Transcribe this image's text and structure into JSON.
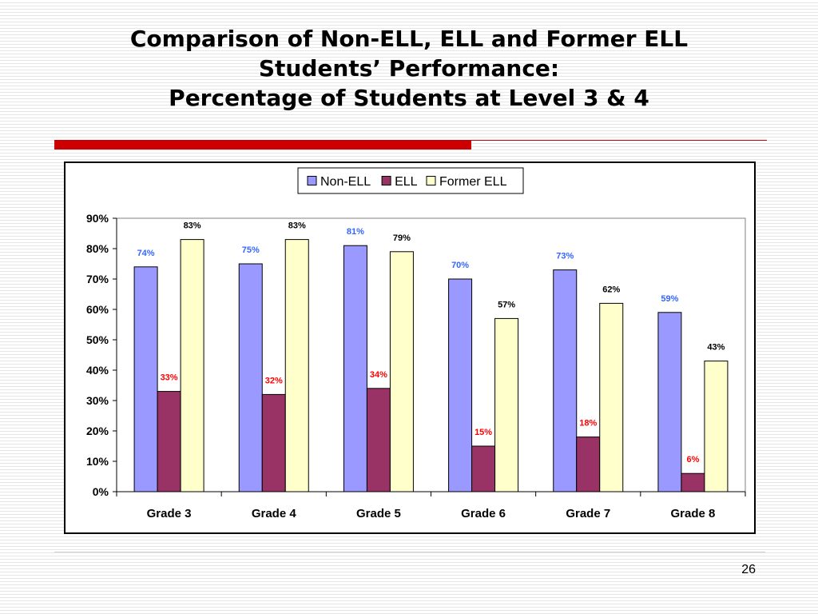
{
  "slide": {
    "title_lines": [
      "Comparison of Non-ELL, ELL and Former ELL",
      "Students’ Performance:",
      "Percentage of Students at Level 3 & 4"
    ],
    "page_number": "26"
  },
  "chart_data": {
    "type": "bar",
    "title": "",
    "xlabel": "",
    "ylabel": "",
    "categories": [
      "Grade 3",
      "Grade 4",
      "Grade 5",
      "Grade 6",
      "Grade 7",
      "Grade 8"
    ],
    "ylim": [
      0,
      90
    ],
    "ytick_values": [
      0,
      10,
      20,
      30,
      40,
      50,
      60,
      70,
      80,
      90
    ],
    "ytick_labels": [
      "0%",
      "10%",
      "20%",
      "30%",
      "40%",
      "50%",
      "60%",
      "70%",
      "80%",
      "90%"
    ],
    "grid": false,
    "legend_position": "top-center",
    "series": [
      {
        "name": "Non-ELL",
        "values": [
          74,
          75,
          81,
          70,
          73,
          59
        ],
        "labels": [
          "74%",
          "75%",
          "81%",
          "70%",
          "73%",
          "59%"
        ],
        "color": "#9999ff",
        "label_color": "#3366ff"
      },
      {
        "name": "ELL",
        "values": [
          33,
          32,
          34,
          15,
          18,
          6
        ],
        "labels": [
          "33%",
          "32%",
          "34%",
          "15%",
          "18%",
          "6%"
        ],
        "color": "#993366",
        "label_color": "#ff0000"
      },
      {
        "name": "Former ELL",
        "values": [
          83,
          83,
          79,
          57,
          62,
          43
        ],
        "labels": [
          "83%",
          "83%",
          "79%",
          "57%",
          "62%",
          "43%"
        ],
        "color": "#ffffcc",
        "label_color": "#000000"
      }
    ]
  }
}
